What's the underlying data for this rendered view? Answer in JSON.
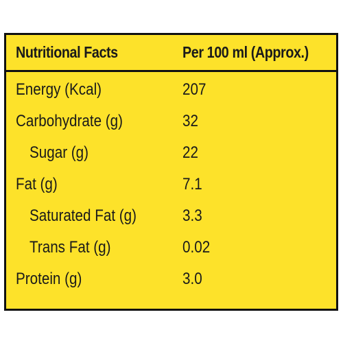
{
  "table": {
    "header": {
      "nutrient": "Nutritional Facts",
      "amount": "Per 100 ml (Approx.)"
    },
    "rows": [
      {
        "name": "Energy (Kcal)",
        "value": "207"
      },
      {
        "name": "Carbohydrate (g)",
        "value": "32"
      },
      {
        "name": "Sugar (g)",
        "value": "22"
      },
      {
        "name": "Fat (g)",
        "value": "7.1"
      },
      {
        "name": "Saturated Fat (g)",
        "value": "3.3"
      },
      {
        "name": "Trans Fat (g)",
        "value": "0.02"
      },
      {
        "name": "Protein (g)",
        "value": "3.0"
      }
    ]
  },
  "colors": {
    "background": "#fde22a",
    "border": "#111111",
    "text": "#1a1a1a"
  }
}
